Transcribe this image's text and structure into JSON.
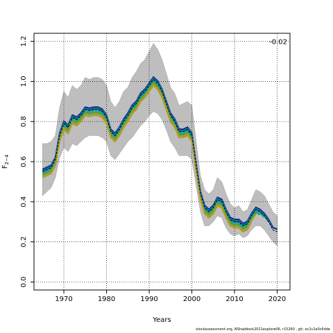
{
  "chart_data": {
    "type": "line",
    "xlabel": "Years",
    "ylabel": "F",
    "ylabel_sub": "2−4",
    "annotation": "-0.02",
    "footer": "stockassessment.org, NShaddock2021explore06, r15260 , git: ec2c2a0c6dde",
    "xlim": [
      1963,
      2023
    ],
    "ylim": [
      -0.04,
      1.24
    ],
    "x_ticks": [
      1970,
      1980,
      1990,
      2000,
      2010,
      2020
    ],
    "y_ticks": [
      0.0,
      0.2,
      0.4,
      0.6,
      0.8,
      1.0,
      1.2
    ],
    "grid": true,
    "colors": {
      "band": "#bebebe",
      "base": "#000000",
      "peels": [
        "#1a237e",
        "#1565c0",
        "#00897b",
        "#26a69a",
        "#43a047",
        "#9e9d24",
        "#b59a28"
      ]
    },
    "x": [
      1965,
      1966,
      1967,
      1968,
      1969,
      1970,
      1971,
      1972,
      1973,
      1974,
      1975,
      1976,
      1977,
      1978,
      1979,
      1980,
      1981,
      1982,
      1983,
      1984,
      1985,
      1986,
      1987,
      1988,
      1989,
      1990,
      1991,
      1992,
      1993,
      1994,
      1995,
      1996,
      1997,
      1998,
      1999,
      2000,
      2001,
      2002,
      2003,
      2004,
      2005,
      2006,
      2007,
      2008,
      2009,
      2010,
      2011,
      2012,
      2013,
      2014,
      2015,
      2016,
      2017,
      2018,
      2019,
      2020
    ],
    "base": [
      0.55,
      0.56,
      0.57,
      0.61,
      0.73,
      0.79,
      0.77,
      0.82,
      0.81,
      0.83,
      0.86,
      0.855,
      0.86,
      0.86,
      0.85,
      0.82,
      0.75,
      0.73,
      0.76,
      0.8,
      0.83,
      0.87,
      0.89,
      0.93,
      0.95,
      0.98,
      1.01,
      0.99,
      0.95,
      0.89,
      0.83,
      0.8,
      0.75,
      0.75,
      0.76,
      0.73,
      0.58,
      0.44,
      0.37,
      0.35,
      0.37,
      0.41,
      0.4,
      0.35,
      0.31,
      0.3,
      0.3,
      0.28,
      0.29,
      0.33,
      0.36,
      0.35,
      0.33,
      0.3,
      0.26,
      0.25
    ],
    "lower": [
      0.43,
      0.45,
      0.47,
      0.52,
      0.62,
      0.67,
      0.65,
      0.69,
      0.68,
      0.7,
      0.72,
      0.73,
      0.73,
      0.73,
      0.72,
      0.7,
      0.63,
      0.61,
      0.64,
      0.67,
      0.7,
      0.72,
      0.75,
      0.78,
      0.8,
      0.83,
      0.85,
      0.84,
      0.81,
      0.76,
      0.7,
      0.67,
      0.63,
      0.63,
      0.63,
      0.61,
      0.48,
      0.35,
      0.28,
      0.28,
      0.3,
      0.33,
      0.32,
      0.27,
      0.24,
      0.23,
      0.24,
      0.22,
      0.23,
      0.26,
      0.28,
      0.28,
      0.26,
      0.23,
      0.2,
      0.18
    ],
    "upper": [
      0.69,
      0.69,
      0.7,
      0.73,
      0.87,
      0.95,
      0.92,
      0.98,
      0.96,
      0.98,
      1.02,
      1.01,
      1.02,
      1.02,
      1.01,
      0.98,
      0.9,
      0.87,
      0.9,
      0.95,
      0.97,
      1.02,
      1.05,
      1.09,
      1.11,
      1.15,
      1.19,
      1.16,
      1.11,
      1.04,
      0.97,
      0.94,
      0.88,
      0.89,
      0.9,
      0.88,
      0.7,
      0.53,
      0.46,
      0.44,
      0.46,
      0.52,
      0.5,
      0.44,
      0.39,
      0.37,
      0.38,
      0.35,
      0.36,
      0.41,
      0.46,
      0.45,
      0.43,
      0.39,
      0.35,
      0.33
    ],
    "peel_offsets": [
      0.012,
      0.006,
      0.0,
      -0.008,
      -0.015,
      -0.022,
      -0.03
    ],
    "peel_end_years": [
      2020,
      2019,
      2018,
      2017,
      2016,
      2015,
      2014
    ]
  }
}
